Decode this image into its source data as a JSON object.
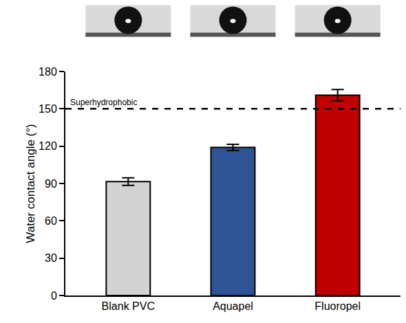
{
  "chart_data": {
    "type": "bar",
    "y_label": "Water contact angle (°)",
    "categories": [
      "Blank PVC",
      "Aquapel",
      "Fluoropel"
    ],
    "values": [
      91.5,
      119,
      161
    ],
    "errors": [
      3,
      2.5,
      4.5
    ],
    "colors": [
      "#d3d3d3",
      "#2e5496",
      "#c00000"
    ],
    "ylim": [
      0,
      180
    ],
    "yticks": [
      0,
      30,
      60,
      90,
      120,
      150,
      180
    ],
    "grid": false,
    "annotations": [
      {
        "text": "Superhydrophobic",
        "y": 150,
        "line_style": "dashed"
      }
    ]
  }
}
